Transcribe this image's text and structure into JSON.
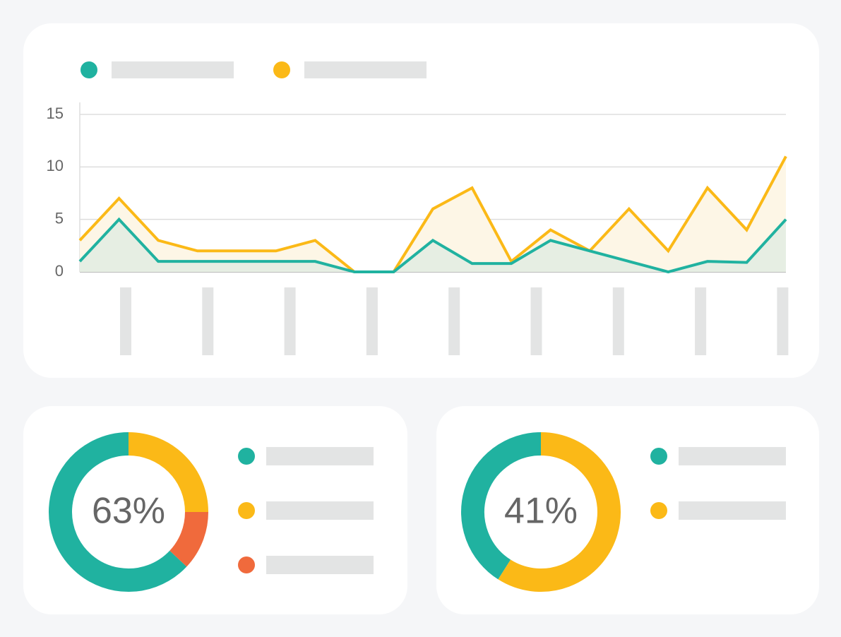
{
  "chart_data": [
    {
      "type": "line",
      "categories": [
        null,
        null,
        null,
        null,
        null,
        null,
        null,
        null,
        null,
        null,
        null,
        null,
        null,
        null,
        null,
        null,
        null,
        null,
        null
      ],
      "series": [
        {
          "color": "#20b2a0",
          "fill": "#e6eee3",
          "values": [
            1,
            5,
            1,
            1,
            1,
            1,
            1,
            0,
            0,
            3,
            0.8,
            0.8,
            3,
            2,
            1,
            0,
            1,
            0.9,
            5
          ]
        },
        {
          "color": "#fbb917",
          "fill": "#fdf6e6",
          "values": [
            3,
            7,
            3,
            2,
            2,
            2,
            3,
            0,
            0,
            6,
            8,
            1,
            4,
            2,
            6,
            2,
            8,
            4,
            11
          ]
        }
      ],
      "ylim": [
        0,
        15
      ],
      "yticks": [
        0,
        5,
        10,
        15
      ],
      "grid": true
    },
    {
      "type": "donut",
      "center_label": "63%",
      "values": [
        63,
        25,
        12
      ],
      "colors": [
        "#20b2a0",
        "#fbb917",
        "#f06a3c"
      ]
    },
    {
      "type": "donut",
      "center_label": "41%",
      "values": [
        41,
        59
      ],
      "colors": [
        "#20b2a0",
        "#fbb917"
      ]
    }
  ]
}
